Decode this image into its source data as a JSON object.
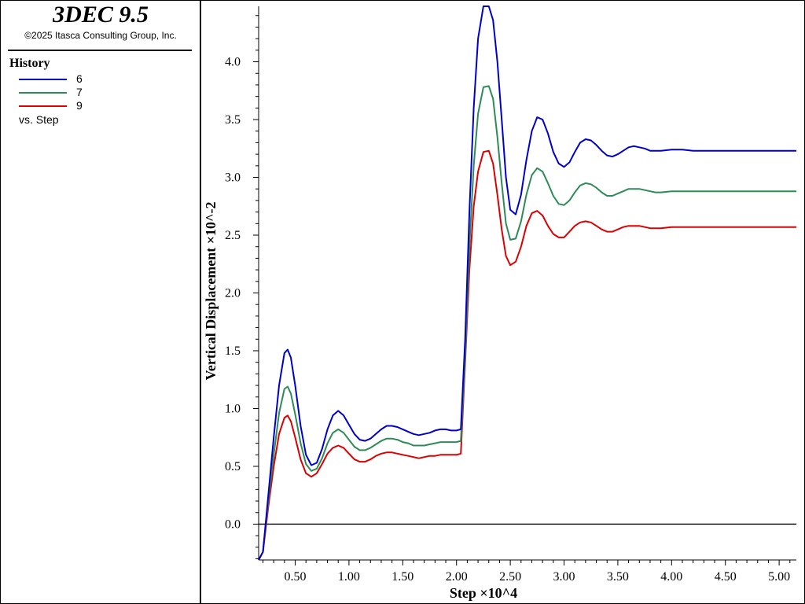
{
  "app": {
    "title": "3DEC 9.5",
    "copyright": "©2025 Itasca Consulting Group, Inc."
  },
  "legend": {
    "heading": "History",
    "items": [
      {
        "label": "6",
        "color": "#0000cc"
      },
      {
        "label": "7",
        "color": "#2e8b57"
      },
      {
        "label": "9",
        "color": "#dd0000"
      }
    ],
    "vs_label": "vs. Step"
  },
  "chart_data": {
    "type": "line",
    "xlabel": "Step ×10^4",
    "ylabel": "Vertical Displacement ×10^-2",
    "xlim": [
      0.16,
      5.16
    ],
    "ylim": [
      -0.31,
      4.48
    ],
    "xticks": [
      "0.50",
      "1.00",
      "1.50",
      "2.00",
      "2.50",
      "3.00",
      "3.50",
      "4.00",
      "4.50",
      "5.00"
    ],
    "xtick_values": [
      0.5,
      1.0,
      1.5,
      2.0,
      2.5,
      3.0,
      3.5,
      4.0,
      4.5,
      5.0
    ],
    "yticks": [
      "0.0",
      "0.5",
      "1.0",
      "1.5",
      "2.0",
      "2.5",
      "3.0",
      "3.5",
      "4.0"
    ],
    "ytick_values": [
      0.0,
      0.5,
      1.0,
      1.5,
      2.0,
      2.5,
      3.0,
      3.5,
      4.0
    ],
    "zero_line": true,
    "series": [
      {
        "name": "6",
        "color": "#0000cc",
        "points": [
          [
            0.16,
            -0.31
          ],
          [
            0.2,
            -0.24
          ],
          [
            0.25,
            0.25
          ],
          [
            0.3,
            0.75
          ],
          [
            0.35,
            1.2
          ],
          [
            0.4,
            1.48
          ],
          [
            0.43,
            1.51
          ],
          [
            0.46,
            1.44
          ],
          [
            0.5,
            1.2
          ],
          [
            0.55,
            0.85
          ],
          [
            0.6,
            0.6
          ],
          [
            0.65,
            0.51
          ],
          [
            0.7,
            0.53
          ],
          [
            0.75,
            0.65
          ],
          [
            0.8,
            0.82
          ],
          [
            0.85,
            0.94
          ],
          [
            0.9,
            0.98
          ],
          [
            0.95,
            0.94
          ],
          [
            1.0,
            0.86
          ],
          [
            1.05,
            0.78
          ],
          [
            1.1,
            0.73
          ],
          [
            1.15,
            0.72
          ],
          [
            1.2,
            0.74
          ],
          [
            1.25,
            0.78
          ],
          [
            1.3,
            0.82
          ],
          [
            1.35,
            0.85
          ],
          [
            1.4,
            0.85
          ],
          [
            1.45,
            0.84
          ],
          [
            1.5,
            0.82
          ],
          [
            1.55,
            0.8
          ],
          [
            1.6,
            0.78
          ],
          [
            1.65,
            0.77
          ],
          [
            1.7,
            0.78
          ],
          [
            1.75,
            0.79
          ],
          [
            1.8,
            0.81
          ],
          [
            1.85,
            0.82
          ],
          [
            1.9,
            0.82
          ],
          [
            1.95,
            0.81
          ],
          [
            2.0,
            0.81
          ],
          [
            2.04,
            0.82
          ],
          [
            2.08,
            1.6
          ],
          [
            2.12,
            2.7
          ],
          [
            2.16,
            3.6
          ],
          [
            2.2,
            4.2
          ],
          [
            2.25,
            4.48
          ],
          [
            2.3,
            4.48
          ],
          [
            2.34,
            4.36
          ],
          [
            2.38,
            4.0
          ],
          [
            2.42,
            3.5
          ],
          [
            2.46,
            3.0
          ],
          [
            2.5,
            2.72
          ],
          [
            2.55,
            2.68
          ],
          [
            2.6,
            2.85
          ],
          [
            2.65,
            3.15
          ],
          [
            2.7,
            3.4
          ],
          [
            2.75,
            3.52
          ],
          [
            2.8,
            3.5
          ],
          [
            2.85,
            3.38
          ],
          [
            2.9,
            3.22
          ],
          [
            2.95,
            3.12
          ],
          [
            3.0,
            3.09
          ],
          [
            3.05,
            3.13
          ],
          [
            3.1,
            3.22
          ],
          [
            3.15,
            3.3
          ],
          [
            3.2,
            3.33
          ],
          [
            3.25,
            3.32
          ],
          [
            3.3,
            3.28
          ],
          [
            3.35,
            3.23
          ],
          [
            3.4,
            3.19
          ],
          [
            3.45,
            3.18
          ],
          [
            3.5,
            3.2
          ],
          [
            3.55,
            3.23
          ],
          [
            3.6,
            3.26
          ],
          [
            3.65,
            3.27
          ],
          [
            3.7,
            3.26
          ],
          [
            3.75,
            3.25
          ],
          [
            3.8,
            3.23
          ],
          [
            3.85,
            3.23
          ],
          [
            3.9,
            3.23
          ],
          [
            4.0,
            3.24
          ],
          [
            4.1,
            3.24
          ],
          [
            4.2,
            3.23
          ],
          [
            4.4,
            3.23
          ],
          [
            4.6,
            3.23
          ],
          [
            4.8,
            3.23
          ],
          [
            5.16,
            3.23
          ]
        ]
      },
      {
        "name": "7",
        "color": "#2e8b57",
        "points": [
          [
            0.16,
            -0.31
          ],
          [
            0.2,
            -0.24
          ],
          [
            0.25,
            0.2
          ],
          [
            0.3,
            0.6
          ],
          [
            0.35,
            0.96
          ],
          [
            0.4,
            1.17
          ],
          [
            0.43,
            1.19
          ],
          [
            0.46,
            1.13
          ],
          [
            0.5,
            0.95
          ],
          [
            0.55,
            0.7
          ],
          [
            0.6,
            0.52
          ],
          [
            0.65,
            0.46
          ],
          [
            0.7,
            0.48
          ],
          [
            0.75,
            0.57
          ],
          [
            0.8,
            0.7
          ],
          [
            0.85,
            0.79
          ],
          [
            0.9,
            0.82
          ],
          [
            0.95,
            0.79
          ],
          [
            1.0,
            0.73
          ],
          [
            1.05,
            0.67
          ],
          [
            1.1,
            0.64
          ],
          [
            1.15,
            0.64
          ],
          [
            1.2,
            0.66
          ],
          [
            1.25,
            0.69
          ],
          [
            1.3,
            0.72
          ],
          [
            1.35,
            0.74
          ],
          [
            1.4,
            0.74
          ],
          [
            1.45,
            0.73
          ],
          [
            1.5,
            0.71
          ],
          [
            1.55,
            0.7
          ],
          [
            1.6,
            0.68
          ],
          [
            1.65,
            0.68
          ],
          [
            1.7,
            0.68
          ],
          [
            1.75,
            0.69
          ],
          [
            1.8,
            0.7
          ],
          [
            1.85,
            0.71
          ],
          [
            1.9,
            0.71
          ],
          [
            1.95,
            0.71
          ],
          [
            2.0,
            0.71
          ],
          [
            2.04,
            0.72
          ],
          [
            2.08,
            1.45
          ],
          [
            2.12,
            2.4
          ],
          [
            2.16,
            3.1
          ],
          [
            2.2,
            3.55
          ],
          [
            2.25,
            3.78
          ],
          [
            2.3,
            3.79
          ],
          [
            2.34,
            3.68
          ],
          [
            2.38,
            3.35
          ],
          [
            2.42,
            2.95
          ],
          [
            2.46,
            2.6
          ],
          [
            2.5,
            2.46
          ],
          [
            2.55,
            2.47
          ],
          [
            2.6,
            2.62
          ],
          [
            2.65,
            2.85
          ],
          [
            2.7,
            3.02
          ],
          [
            2.75,
            3.08
          ],
          [
            2.8,
            3.05
          ],
          [
            2.85,
            2.95
          ],
          [
            2.9,
            2.84
          ],
          [
            2.95,
            2.77
          ],
          [
            3.0,
            2.76
          ],
          [
            3.05,
            2.8
          ],
          [
            3.1,
            2.87
          ],
          [
            3.15,
            2.93
          ],
          [
            3.2,
            2.95
          ],
          [
            3.25,
            2.94
          ],
          [
            3.3,
            2.91
          ],
          [
            3.35,
            2.87
          ],
          [
            3.4,
            2.84
          ],
          [
            3.45,
            2.84
          ],
          [
            3.5,
            2.86
          ],
          [
            3.55,
            2.88
          ],
          [
            3.6,
            2.9
          ],
          [
            3.65,
            2.9
          ],
          [
            3.7,
            2.9
          ],
          [
            3.75,
            2.89
          ],
          [
            3.8,
            2.88
          ],
          [
            3.85,
            2.87
          ],
          [
            3.9,
            2.87
          ],
          [
            4.0,
            2.88
          ],
          [
            4.1,
            2.88
          ],
          [
            4.2,
            2.88
          ],
          [
            4.4,
            2.88
          ],
          [
            4.6,
            2.88
          ],
          [
            4.8,
            2.88
          ],
          [
            5.16,
            2.88
          ]
        ]
      },
      {
        "name": "9",
        "color": "#dd0000",
        "points": [
          [
            0.16,
            -0.31
          ],
          [
            0.2,
            -0.24
          ],
          [
            0.25,
            0.15
          ],
          [
            0.3,
            0.5
          ],
          [
            0.35,
            0.78
          ],
          [
            0.4,
            0.92
          ],
          [
            0.43,
            0.94
          ],
          [
            0.46,
            0.89
          ],
          [
            0.5,
            0.75
          ],
          [
            0.55,
            0.56
          ],
          [
            0.6,
            0.44
          ],
          [
            0.65,
            0.41
          ],
          [
            0.7,
            0.44
          ],
          [
            0.75,
            0.52
          ],
          [
            0.8,
            0.61
          ],
          [
            0.85,
            0.66
          ],
          [
            0.9,
            0.68
          ],
          [
            0.95,
            0.66
          ],
          [
            1.0,
            0.61
          ],
          [
            1.05,
            0.56
          ],
          [
            1.1,
            0.54
          ],
          [
            1.15,
            0.54
          ],
          [
            1.2,
            0.56
          ],
          [
            1.25,
            0.59
          ],
          [
            1.3,
            0.61
          ],
          [
            1.35,
            0.62
          ],
          [
            1.4,
            0.62
          ],
          [
            1.45,
            0.61
          ],
          [
            1.5,
            0.6
          ],
          [
            1.55,
            0.59
          ],
          [
            1.6,
            0.58
          ],
          [
            1.65,
            0.57
          ],
          [
            1.7,
            0.58
          ],
          [
            1.75,
            0.59
          ],
          [
            1.8,
            0.59
          ],
          [
            1.85,
            0.6
          ],
          [
            1.9,
            0.6
          ],
          [
            1.95,
            0.6
          ],
          [
            2.0,
            0.6
          ],
          [
            2.04,
            0.61
          ],
          [
            2.08,
            1.4
          ],
          [
            2.12,
            2.2
          ],
          [
            2.16,
            2.75
          ],
          [
            2.2,
            3.05
          ],
          [
            2.25,
            3.22
          ],
          [
            2.3,
            3.23
          ],
          [
            2.34,
            3.12
          ],
          [
            2.38,
            2.85
          ],
          [
            2.42,
            2.55
          ],
          [
            2.46,
            2.32
          ],
          [
            2.5,
            2.24
          ],
          [
            2.55,
            2.27
          ],
          [
            2.6,
            2.4
          ],
          [
            2.65,
            2.58
          ],
          [
            2.7,
            2.69
          ],
          [
            2.75,
            2.71
          ],
          [
            2.8,
            2.67
          ],
          [
            2.85,
            2.58
          ],
          [
            2.9,
            2.51
          ],
          [
            2.95,
            2.48
          ],
          [
            3.0,
            2.48
          ],
          [
            3.05,
            2.53
          ],
          [
            3.1,
            2.58
          ],
          [
            3.15,
            2.61
          ],
          [
            3.2,
            2.62
          ],
          [
            3.25,
            2.61
          ],
          [
            3.3,
            2.58
          ],
          [
            3.35,
            2.55
          ],
          [
            3.4,
            2.53
          ],
          [
            3.45,
            2.53
          ],
          [
            3.5,
            2.55
          ],
          [
            3.55,
            2.57
          ],
          [
            3.6,
            2.58
          ],
          [
            3.65,
            2.58
          ],
          [
            3.7,
            2.58
          ],
          [
            3.75,
            2.57
          ],
          [
            3.8,
            2.56
          ],
          [
            3.85,
            2.56
          ],
          [
            3.9,
            2.56
          ],
          [
            4.0,
            2.57
          ],
          [
            4.1,
            2.57
          ],
          [
            4.2,
            2.57
          ],
          [
            4.4,
            2.57
          ],
          [
            4.6,
            2.57
          ],
          [
            4.8,
            2.57
          ],
          [
            5.16,
            2.57
          ]
        ]
      }
    ]
  }
}
